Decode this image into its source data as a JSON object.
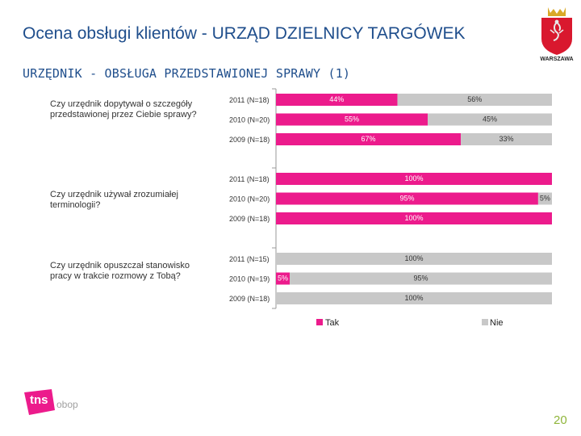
{
  "header": {
    "title": "Ocena obsługi klientów - URZĄD DZIELNICY TARGÓWEK",
    "subtitle": "URZĘDNIK - OBSŁUGA PRZEDSTAWIONEJ SPRAWY (1)"
  },
  "questions": [
    "Czy urzędnik dopytywał o szczegóły przedstawionej przez Ciebie sprawy?",
    "Czy urzędnik używał zrozumiałej terminologii?",
    "Czy urzędnik opuszczał stanowisko pracy w trakcie rozmowy z Tobą?"
  ],
  "branding": {
    "city_label": "WARSZAWA",
    "logo_text": "tns",
    "logo_suffix": "obop"
  },
  "footer": {
    "page_number": "20"
  },
  "colors": {
    "tak": "#ec1b8c",
    "nie": "#c8c8c8",
    "title": "#1f4e8c",
    "page": "#8fb53a"
  },
  "chart_data": {
    "type": "bar",
    "orientation": "horizontal-stacked-percent",
    "legend": [
      "Tak",
      "Nie"
    ],
    "legend_position": "bottom",
    "groups": [
      {
        "question_index": 0,
        "bars": [
          {
            "label": "2011 (N=18)",
            "tak": 44,
            "nie": 56,
            "tak_label": "44%",
            "nie_label": "56%"
          },
          {
            "label": "2010 (N=20)",
            "tak": 55,
            "nie": 45,
            "tak_label": "55%",
            "nie_label": "45%"
          },
          {
            "label": "2009 (N=18)",
            "tak": 67,
            "nie": 33,
            "tak_label": "67%",
            "nie_label": "33%"
          }
        ]
      },
      {
        "question_index": 1,
        "bars": [
          {
            "label": "2011 (N=18)",
            "tak": 100,
            "nie": 0,
            "tak_label": "100%",
            "nie_label": ""
          },
          {
            "label": "2010 (N=20)",
            "tak": 95,
            "nie": 5,
            "tak_label": "95%",
            "nie_label": "5%"
          },
          {
            "label": "2009 (N=18)",
            "tak": 100,
            "nie": 0,
            "tak_label": "100%",
            "nie_label": ""
          }
        ]
      },
      {
        "question_index": 2,
        "bars": [
          {
            "label": "2011 (N=15)",
            "tak": 0,
            "nie": 100,
            "tak_label": "",
            "nie_label": "100%"
          },
          {
            "label": "2010 (N=19)",
            "tak": 5,
            "nie": 95,
            "tak_label": "5%",
            "nie_label": "95%"
          },
          {
            "label": "2009 (N=18)",
            "tak": 0,
            "nie": 100,
            "tak_label": "",
            "nie_label": "100%"
          }
        ]
      }
    ]
  }
}
